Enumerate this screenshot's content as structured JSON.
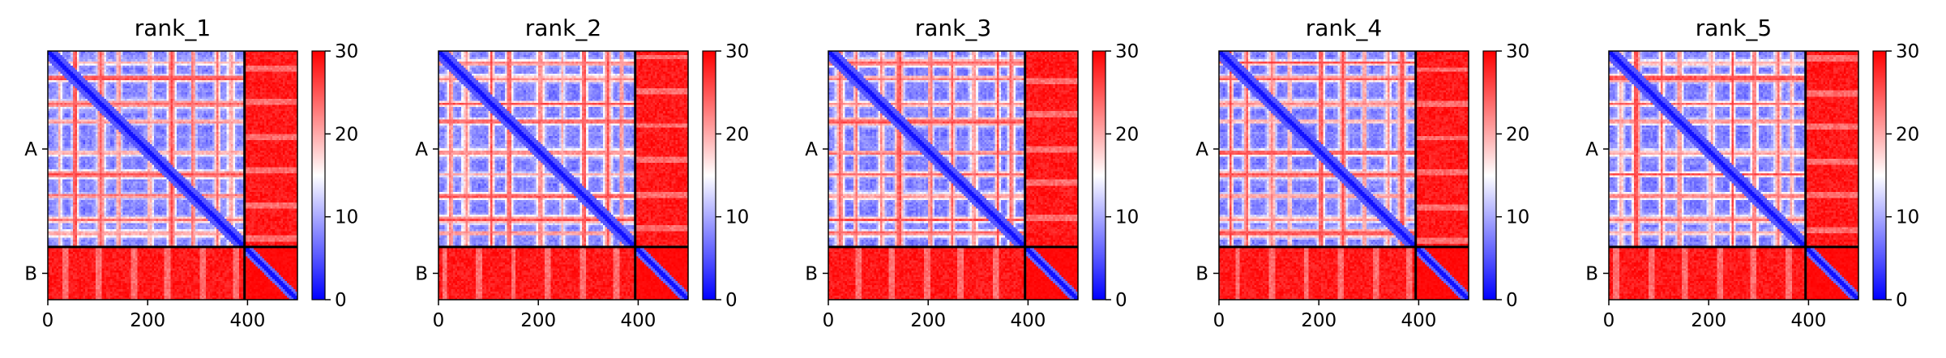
{
  "colors": {
    "low": "#0000ff",
    "mid": "#ffffff",
    "high": "#ff0000",
    "text": "#000000",
    "divider": "#000000"
  },
  "chart_data": [
    {
      "type": "heatmap",
      "title": "rank_1",
      "xlim": [
        0,
        500
      ],
      "x_ticks": [
        0,
        200,
        400
      ],
      "y_ticks": [
        {
          "label": "A",
          "value": 197
        },
        {
          "label": "B",
          "value": 447
        }
      ],
      "chain_boundary": 394,
      "colorbar": {
        "min": 0,
        "max": 30,
        "ticks": [
          0,
          10,
          20,
          30
        ]
      },
      "cmap": "bwr"
    },
    {
      "type": "heatmap",
      "title": "rank_2",
      "xlim": [
        0,
        500
      ],
      "x_ticks": [
        0,
        200,
        400
      ],
      "y_ticks": [
        {
          "label": "A",
          "value": 197
        },
        {
          "label": "B",
          "value": 447
        }
      ],
      "chain_boundary": 394,
      "colorbar": {
        "min": 0,
        "max": 30,
        "ticks": [
          0,
          10,
          20,
          30
        ]
      },
      "cmap": "bwr"
    },
    {
      "type": "heatmap",
      "title": "rank_3",
      "xlim": [
        0,
        500
      ],
      "x_ticks": [
        0,
        200,
        400
      ],
      "y_ticks": [
        {
          "label": "A",
          "value": 197
        },
        {
          "label": "B",
          "value": 447
        }
      ],
      "chain_boundary": 394,
      "colorbar": {
        "min": 0,
        "max": 30,
        "ticks": [
          0,
          10,
          20,
          30
        ]
      },
      "cmap": "bwr"
    },
    {
      "type": "heatmap",
      "title": "rank_4",
      "xlim": [
        0,
        500
      ],
      "x_ticks": [
        0,
        200,
        400
      ],
      "y_ticks": [
        {
          "label": "A",
          "value": 197
        },
        {
          "label": "B",
          "value": 447
        }
      ],
      "chain_boundary": 394,
      "colorbar": {
        "min": 0,
        "max": 30,
        "ticks": [
          0,
          10,
          20,
          30
        ]
      },
      "cmap": "bwr"
    },
    {
      "type": "heatmap",
      "title": "rank_5",
      "xlim": [
        0,
        500
      ],
      "x_ticks": [
        0,
        200,
        400
      ],
      "y_ticks": [
        {
          "label": "A",
          "value": 197
        },
        {
          "label": "B",
          "value": 447
        }
      ],
      "chain_boundary": 394,
      "colorbar": {
        "min": 0,
        "max": 30,
        "ticks": [
          0,
          10,
          20,
          30
        ]
      },
      "cmap": "bwr"
    }
  ]
}
